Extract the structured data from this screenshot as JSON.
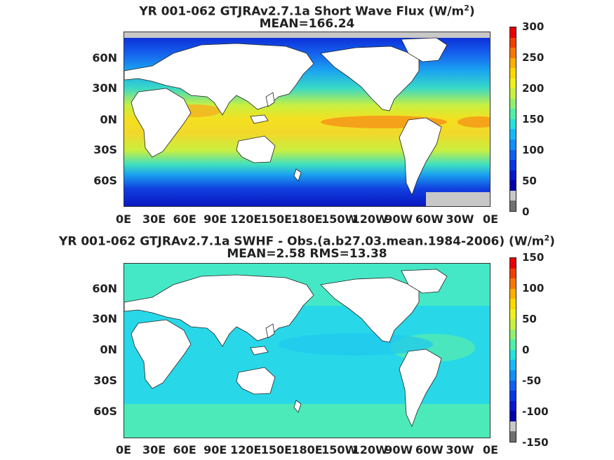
{
  "panels": [
    {
      "title": "YR 001-062 GTJRAv2.7.1a  Short Wave Flux (W/m",
      "title_sup": "2",
      "title_end": ")",
      "subtitle": "MEAN=166.24",
      "colorbar": {
        "min": 0,
        "max": 300,
        "ticks": [
          "300",
          "250",
          "200",
          "150",
          "100",
          "50",
          "0"
        ]
      },
      "colors": {
        "land": "#ffffff",
        "missing": "#c8c8c8"
      }
    },
    {
      "title": "YR 001-062 GTJRAv2.7.1a SWHF - Obs.(a.b27.03.mean.1984-2006) (W/m",
      "title_sup": "2",
      "title_end": ")",
      "subtitle": "MEAN=2.58 RMS=13.38",
      "colorbar": {
        "min": -150,
        "max": 150,
        "ticks": [
          "150",
          "100",
          "50",
          "0",
          "-50",
          "-100",
          "-150"
        ]
      },
      "colors": {
        "land": "#ffffff",
        "missing": "#c8c8c8"
      }
    }
  ],
  "lat_labels": [
    "60N",
    "30N",
    "0N",
    "30S",
    "60S"
  ],
  "lon_labels": [
    "0E",
    "30E",
    "60E",
    "90E",
    "120E",
    "150E",
    "180E",
    "150W",
    "120W",
    "90W",
    "60W",
    "30W",
    "0E"
  ]
}
